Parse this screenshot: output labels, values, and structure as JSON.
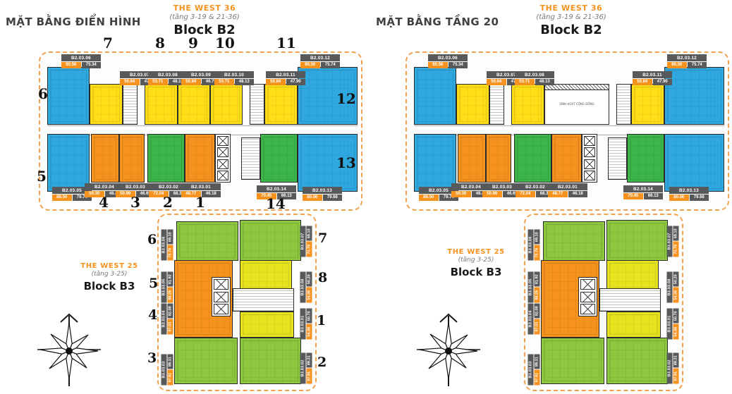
{
  "titles": {
    "left": "MẶT BẰNG ĐIỂN HÌNH",
    "right": "MẶT BẰNG TẦNG 20"
  },
  "b2_header": {
    "project": "THE WEST 36",
    "floors": "(tầng 3-19 & 21-36)",
    "block": "Block B2"
  },
  "b3_header": {
    "project": "THE WEST 25",
    "floors": "(tầng 3-25)",
    "block": "Block B3"
  },
  "community_room_label": "SINH HOẠT CỘNG ĐỒNG",
  "b2_units": {
    "u01": {
      "code": "B2.03.01",
      "gross": "48.77",
      "net": "46.18"
    },
    "u02": {
      "code": "B2.03.02",
      "gross": "72.04",
      "net": "68.35"
    },
    "u03": {
      "code": "B2.03.03",
      "gross": "50.99",
      "net": "46.69"
    },
    "u04": {
      "code": "B2.03.04",
      "gross": "50.30",
      "net": "48.49"
    },
    "u05": {
      "code": "B2.03.05",
      "gross": "86.50",
      "net": "79.74"
    },
    "u06": {
      "code": "B2.03.06",
      "gross": "80.56",
      "net": "75.34"
    },
    "u07": {
      "code": "B2.03.07",
      "gross": "50.84",
      "net": "47.94"
    },
    "u08": {
      "code": "B2.03.08",
      "gross": "53.71",
      "net": "48.13"
    },
    "u09": {
      "code": "B2.03.09",
      "gross": "50.84",
      "net": "46.75"
    },
    "u10": {
      "code": "B2.03.10",
      "gross": "53.71",
      "net": "48.13"
    },
    "u11": {
      "code": "B2.03.11",
      "gross": "50.84",
      "net": "47.90"
    },
    "u12": {
      "code": "B2.03.12",
      "gross": "80.56",
      "net": "75.74"
    },
    "u13": {
      "code": "B2.03.13",
      "gross": "80.56",
      "net": "79.68"
    },
    "u14": {
      "code": "B2.03.14",
      "gross": "70.45",
      "net": "66.13"
    }
  },
  "b3_units": {
    "u01": {
      "code": "B3.03.01",
      "gross": "54.36",
      "net": "50.70"
    },
    "u02": {
      "code": "B3.03.02",
      "gross": "97.91",
      "net": "89.31"
    },
    "u03": {
      "code": "B3.03.03",
      "gross": "97.91",
      "net": "89.31"
    },
    "u04": {
      "code": "B3.03.04",
      "gross": "87.03",
      "net": "82.08"
    },
    "u05": {
      "code": "B3.03.05",
      "gross": "88.26",
      "net": "81.92"
    },
    "u06": {
      "code": "B3.03.06",
      "gross": "73.76",
      "net": "69.10"
    },
    "u07": {
      "code": "B3.03.07",
      "gross": "73.76",
      "net": "69.10"
    },
    "u08": {
      "code": "B3.03.08",
      "gross": "54.36",
      "net": "50.20"
    }
  },
  "b2_badges": {
    "left": [
      "u06",
      "u07",
      "u08",
      "u09",
      "u10",
      "u11",
      "u12",
      "u05",
      "u04",
      "u03",
      "u02",
      "u01",
      "u14",
      "u13"
    ],
    "right": [
      "u06",
      "u07",
      "u08",
      "u11",
      "u12",
      "u05",
      "u04",
      "u03",
      "u02",
      "u01",
      "u14",
      "u13"
    ]
  },
  "b3_badges": {
    "left": [
      "u06",
      "u05",
      "u04",
      "u03",
      "u07",
      "u08",
      "u01",
      "u02"
    ],
    "right": [
      "u06",
      "u05",
      "u04",
      "u03",
      "u07",
      "u08",
      "u01",
      "u02"
    ]
  },
  "b2_numbers": [
    "1",
    "2",
    "3",
    "4",
    "5",
    "6",
    "7",
    "8",
    "9",
    "10",
    "11",
    "12",
    "13",
    "14"
  ],
  "b3_numbers": [
    "1",
    "2",
    "3",
    "4",
    "5",
    "6",
    "7",
    "8"
  ],
  "colors": {
    "accent_orange": "#F6921E",
    "outline_dashed": "#F2A24E",
    "unit_blue": "#2FA8E0",
    "unit_yellow": "#FFDE17",
    "unit_orange": "#F6921E",
    "unit_green": "#3CB54A",
    "unit_green_light": "#8DC63F",
    "unit_yellow_green": "#E7E41F",
    "badge_dark": "#58595B"
  }
}
